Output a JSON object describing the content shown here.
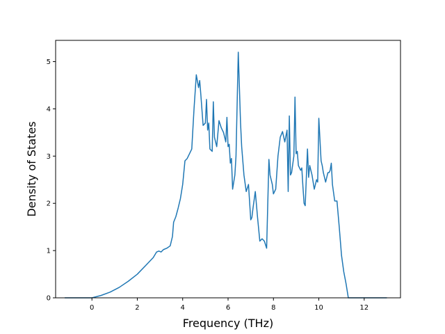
{
  "chart_data": {
    "type": "line",
    "title": "",
    "xlabel": "Frequency (THz)",
    "ylabel": "Density of States",
    "xlim": [
      -1.6,
      13.6
    ],
    "ylim": [
      0,
      5.45
    ],
    "xticks": [
      0,
      2,
      4,
      6,
      8,
      10,
      12
    ],
    "yticks": [
      0,
      1,
      2,
      3,
      4,
      5
    ],
    "grid": false,
    "legend": "none",
    "series": [
      {
        "color": "#1f77b4",
        "x": [
          -1.2,
          -0.8,
          -0.4,
          0.0,
          0.4,
          0.8,
          1.2,
          1.6,
          2.0,
          2.4,
          2.7,
          2.85,
          2.95,
          3.05,
          3.15,
          3.3,
          3.45,
          3.55,
          3.6,
          3.7,
          3.8,
          3.9,
          4.0,
          4.1,
          4.2,
          4.3,
          4.4,
          4.5,
          4.6,
          4.7,
          4.75,
          4.8,
          4.9,
          5.0,
          5.05,
          5.1,
          5.15,
          5.2,
          5.3,
          5.35,
          5.4,
          5.5,
          5.6,
          5.7,
          5.8,
          5.9,
          5.95,
          6.0,
          6.05,
          6.1,
          6.15,
          6.2,
          6.3,
          6.35,
          6.45,
          6.55,
          6.6,
          6.7,
          6.8,
          6.9,
          7.0,
          7.05,
          7.1,
          7.2,
          7.3,
          7.4,
          7.5,
          7.6,
          7.7,
          7.8,
          7.85,
          7.95,
          8.0,
          8.1,
          8.2,
          8.3,
          8.4,
          8.5,
          8.6,
          8.65,
          8.7,
          8.75,
          8.8,
          8.9,
          8.95,
          9.0,
          9.05,
          9.1,
          9.2,
          9.25,
          9.3,
          9.35,
          9.4,
          9.5,
          9.55,
          9.6,
          9.7,
          9.8,
          9.9,
          9.95,
          10.0,
          10.1,
          10.15,
          10.2,
          10.3,
          10.4,
          10.45,
          10.5,
          10.55,
          10.6,
          10.7,
          10.8,
          10.9,
          11.0,
          11.1,
          11.2,
          11.3,
          11.4,
          11.5,
          11.6,
          11.7,
          11.8,
          11.85,
          12.0,
          12.5,
          13.0
        ],
        "y": [
          0,
          0,
          0,
          0,
          0.05,
          0.12,
          0.22,
          0.35,
          0.5,
          0.7,
          0.85,
          0.97,
          0.99,
          0.97,
          1.02,
          1.05,
          1.1,
          1.3,
          1.6,
          1.72,
          1.9,
          2.1,
          2.4,
          2.9,
          2.95,
          3.05,
          3.15,
          4.0,
          4.72,
          4.45,
          4.6,
          4.3,
          3.65,
          3.7,
          4.2,
          3.55,
          3.7,
          3.15,
          3.1,
          4.15,
          3.4,
          3.2,
          3.75,
          3.6,
          3.5,
          3.3,
          3.82,
          3.2,
          3.25,
          2.85,
          2.95,
          2.3,
          2.6,
          3.0,
          5.2,
          3.7,
          3.2,
          2.6,
          2.25,
          2.4,
          1.65,
          1.7,
          1.9,
          2.25,
          1.7,
          1.2,
          1.25,
          1.2,
          1.05,
          2.93,
          2.6,
          2.4,
          2.2,
          2.3,
          3.0,
          3.4,
          3.52,
          3.3,
          3.55,
          2.25,
          3.85,
          2.6,
          2.65,
          3.0,
          4.25,
          3.05,
          3.1,
          2.8,
          2.7,
          2.75,
          2.35,
          2.0,
          1.95,
          3.15,
          2.55,
          2.8,
          2.6,
          2.3,
          2.5,
          2.45,
          3.8,
          2.9,
          2.8,
          2.65,
          2.45,
          2.65,
          2.65,
          2.7,
          2.85,
          2.4,
          2.05,
          2.05,
          1.5,
          0.9,
          0.55,
          0.3,
          0,
          0,
          0,
          0,
          0,
          0,
          0,
          0,
          0,
          0
        ]
      }
    ]
  }
}
